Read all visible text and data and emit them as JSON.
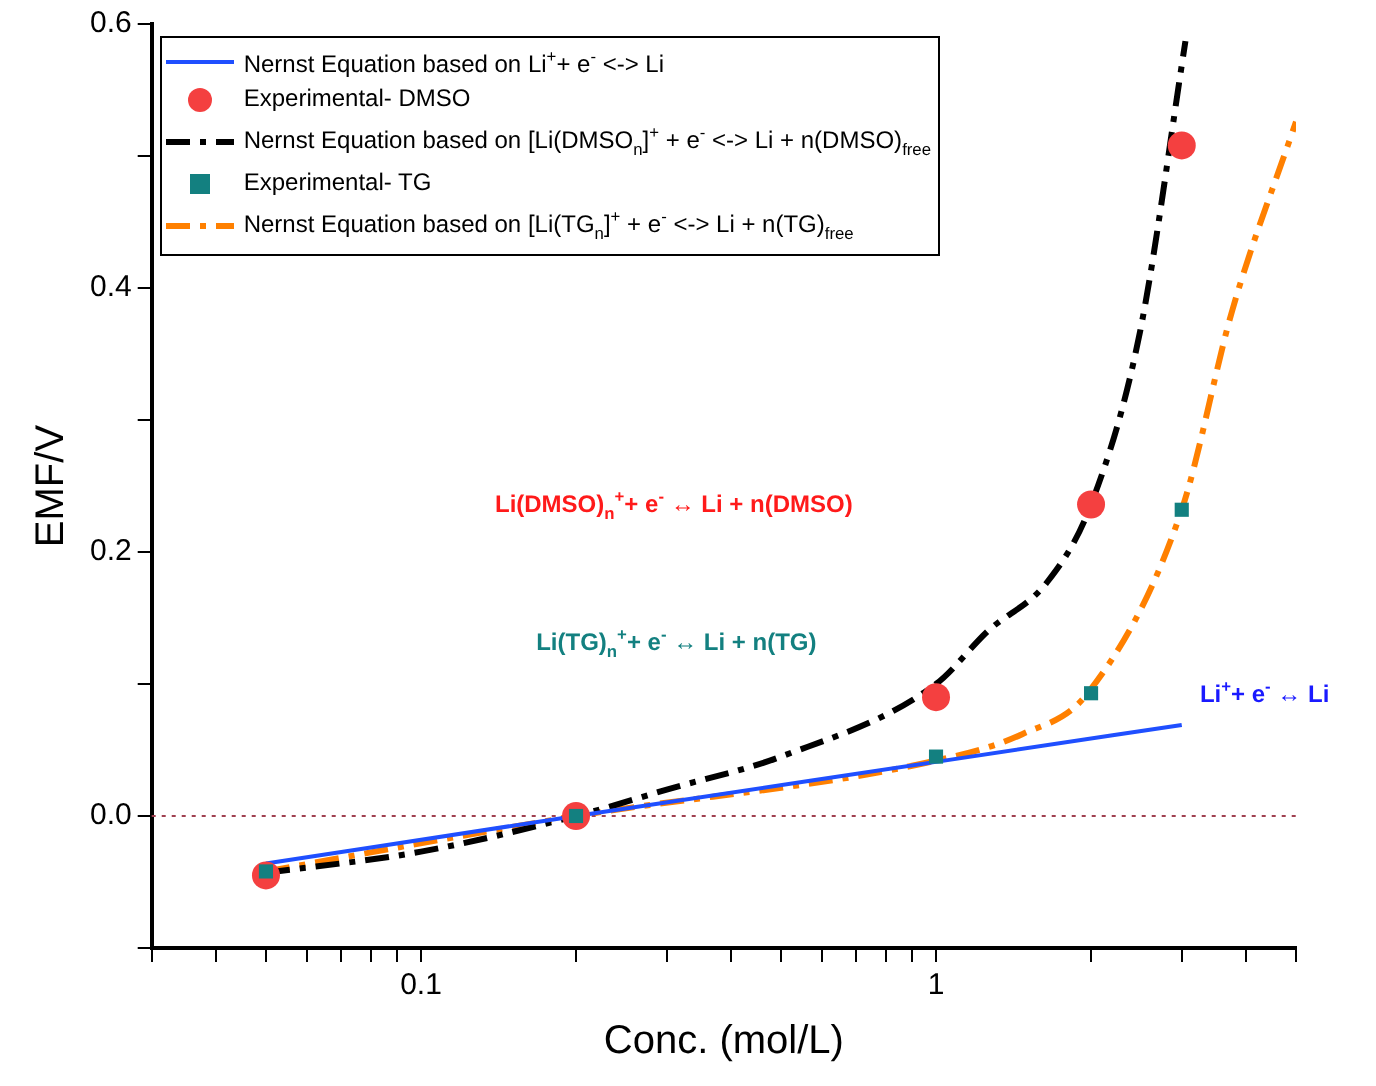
{
  "chart_data": {
    "type": "line",
    "xlabel": "Conc. (mol/L)",
    "ylabel": "EMF/V",
    "log": "x",
    "xlim": [
      0.03,
      5
    ],
    "xticks": [
      {
        "value": 0.03,
        "label": null
      },
      {
        "value": 0.04,
        "label": null
      },
      {
        "value": 0.05,
        "label": null
      },
      {
        "value": 0.06,
        "label": null
      },
      {
        "value": 0.07,
        "label": null
      },
      {
        "value": 0.08,
        "label": null
      },
      {
        "value": 0.09,
        "label": null
      },
      0.1,
      {
        "value": 0.2,
        "label": null
      },
      {
        "value": 0.3,
        "label": null
      },
      {
        "value": 0.4,
        "label": null
      },
      {
        "value": 0.5,
        "label": null
      },
      {
        "value": 0.6,
        "label": null
      },
      {
        "value": 0.7,
        "label": null
      },
      {
        "value": 0.8,
        "label": null
      },
      {
        "value": 0.9,
        "label": null
      },
      1,
      {
        "value": 2,
        "label": null
      },
      {
        "value": 3,
        "label": null
      },
      {
        "value": 4,
        "label": null
      },
      {
        "value": 5,
        "label": null
      }
    ],
    "ylim": [
      -0.1,
      0.6
    ],
    "yticks": [
      {
        "value": -0.1,
        "label": null
      },
      {
        "value": 0,
        "label": "0.0"
      },
      {
        "value": 0.1,
        "label": null
      },
      {
        "value": 0.2,
        "label": "0.2"
      },
      {
        "value": 0.3,
        "label": null
      },
      {
        "value": 0.4,
        "label": "0.4"
      },
      {
        "value": 0.5,
        "label": null
      },
      {
        "value": 0.6,
        "label": "0.6"
      }
    ],
    "grid": false,
    "legend": "top left",
    "series": [
      {
        "name": "Nernst Equation based on Li$^{+}$+ e$^{-}$ <-> Li",
        "line_style": "solid",
        "marker": "none",
        "color": "#1f4fff",
        "x": [
          0.05,
          0.2,
          1,
          3
        ],
        "values": [
          -0.036,
          0,
          0.041,
          0.069
        ]
      },
      {
        "name": "Experimental- DMSO",
        "type": "scatter",
        "marker": "circle",
        "color": "#f44040",
        "x": [
          0.05,
          0.2,
          1,
          2,
          3
        ],
        "values": [
          -0.045,
          0,
          0.09,
          0.236,
          0.508
        ]
      },
      {
        "name": "Nernst Equation based on [Li(DMSO$_{n}$]$^{+}$ + e$^{-}$ <-> Li + n(DMSO)$_{free}$",
        "line_style": "dashdot",
        "marker": "none",
        "color": "#000000",
        "x": [
          0.05,
          0.1,
          0.2,
          0.3,
          0.5,
          1,
          1.26,
          1.65,
          2,
          2.49,
          3.05
        ],
        "values": [
          -0.043,
          -0.027,
          0,
          0.02,
          0.045,
          0.1,
          0.14,
          0.178,
          0.236,
          0.367,
          0.587
        ]
      },
      {
        "name": "Experimental- TG",
        "type": "scatter",
        "marker": "square",
        "color": "#138080",
        "x": [
          0.05,
          0.2,
          1,
          2,
          3
        ],
        "values": [
          -0.042,
          0,
          0.045,
          0.093,
          0.232
        ]
      },
      {
        "name": "Nernst Equation based on [Li(TG$_{n}$]$^{+}$ + e$^{-}$ <-> Li + n(TG)$_{free}$",
        "line_style": "dashdot",
        "marker": "none",
        "color": "#ff8000",
        "x": [
          0.05,
          0.2,
          1,
          1.47,
          1.97,
          3,
          3.76,
          5
        ],
        "values": [
          -0.042,
          0,
          0.042,
          0.062,
          0.093,
          0.232,
          0.383,
          0.526
        ]
      }
    ],
    "ref_lines": [
      {
        "axis": "y",
        "value": 0,
        "label": null,
        "color": "#a04050",
        "line_style": "dotted"
      }
    ],
    "annotations": [
      "Li(DMSO)$_{n}$$^{+}$+ e$^{-}$ ↔ Li + n(DMSO)",
      "Li(TG)$_{n}$$^{+}$+ e$^{-}$ ↔ Li + n(TG)",
      "Li$^{+}$+ e$^{-}$ ↔ Li"
    ]
  }
}
